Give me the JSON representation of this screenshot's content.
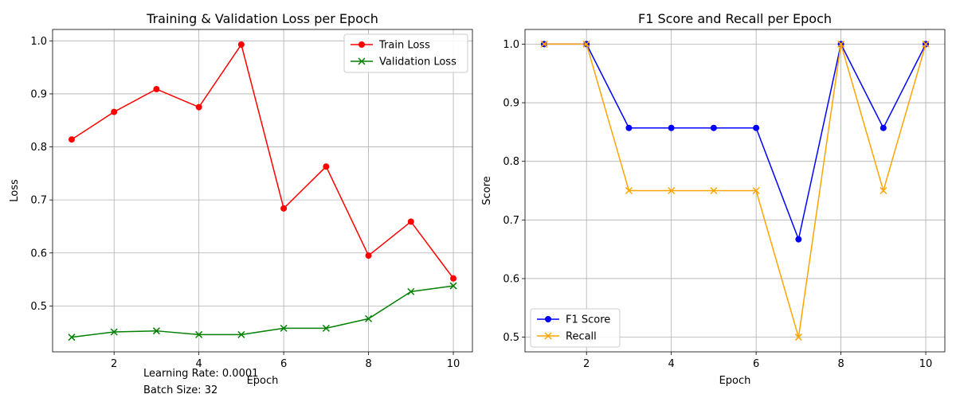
{
  "chart_data": [
    {
      "type": "line",
      "title": "Training & Validation Loss per Epoch",
      "xlabel": "Epoch",
      "ylabel": "Loss",
      "xlim": [
        0.55,
        10.45
      ],
      "ylim": [
        0.4135,
        1.0215
      ],
      "xticks": [
        2,
        4,
        6,
        8,
        10
      ],
      "yticks": [
        0.5,
        0.6,
        0.7,
        0.8,
        0.9,
        1.0
      ],
      "grid": true,
      "legend": "top-right",
      "x": [
        1,
        2,
        3,
        4,
        5,
        6,
        7,
        8,
        9,
        10
      ],
      "series": [
        {
          "name": "Train Loss",
          "color": "#ff0000",
          "marker": "circle",
          "values": [
            0.814,
            0.866,
            0.909,
            0.875,
            0.993,
            0.684,
            0.763,
            0.595,
            0.659,
            0.552
          ]
        },
        {
          "name": "Validation Loss",
          "color": "#008000",
          "marker": "x",
          "values": [
            0.441,
            0.451,
            0.453,
            0.446,
            0.446,
            0.458,
            0.458,
            0.476,
            0.527,
            0.538
          ]
        }
      ]
    },
    {
      "type": "line",
      "title": "F1 Score and Recall per Epoch",
      "xlabel": "Epoch",
      "ylabel": "Score",
      "xlim": [
        0.55,
        10.45
      ],
      "ylim": [
        0.475,
        1.025
      ],
      "xticks": [
        2,
        4,
        6,
        8,
        10
      ],
      "yticks": [
        0.5,
        0.6,
        0.7,
        0.8,
        0.9,
        1.0
      ],
      "grid": true,
      "legend": "bottom-left",
      "x": [
        1,
        2,
        3,
        4,
        5,
        6,
        7,
        8,
        9,
        10
      ],
      "series": [
        {
          "name": "F1 Score",
          "color": "#0000ff",
          "marker": "circle",
          "values": [
            1.0,
            1.0,
            0.857,
            0.857,
            0.857,
            0.857,
            0.667,
            1.0,
            0.857,
            1.0
          ]
        },
        {
          "name": "Recall",
          "color": "#ffa500",
          "marker": "x",
          "values": [
            1.0,
            1.0,
            0.75,
            0.75,
            0.75,
            0.75,
            0.5,
            1.0,
            0.75,
            1.0
          ]
        }
      ]
    }
  ],
  "annotations": {
    "learning_rate": "Learning Rate: 0.0001",
    "batch_size": "Batch Size: 32"
  }
}
